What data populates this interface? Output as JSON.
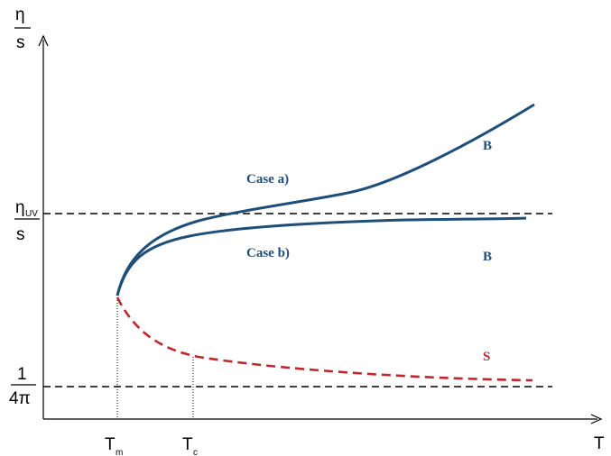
{
  "chart_data": {
    "type": "line",
    "title": "",
    "xlabel": "T",
    "ylabel": {
      "numerator": "η",
      "denominator": "s"
    },
    "xticks": [
      {
        "name": "T-m",
        "main": "T",
        "sub": "m"
      },
      {
        "name": "T-c",
        "main": "T",
        "sub": "c"
      }
    ],
    "yticks": [
      {
        "name": "eta-uv-over-s",
        "main": "η",
        "sub": "UV",
        "denominator": "s"
      },
      {
        "name": "one-over-4pi",
        "main": "1",
        "denominator": "4π"
      }
    ],
    "reference_lines": [
      {
        "name": "eta-uv-line",
        "style": "dashed",
        "level": "eta_uv_over_s"
      },
      {
        "name": "kss-bound-line",
        "style": "dashed",
        "level": "one_over_4pi"
      }
    ],
    "series": [
      {
        "id": "case-a",
        "style": "solid",
        "color": "#1f4e79",
        "shape": "rises from Tm, crosses eta_uv/s, keeps increasing"
      },
      {
        "id": "case-b",
        "style": "solid",
        "color": "#1f4e79",
        "shape": "rises from Tm, saturates just below eta_uv/s"
      },
      {
        "id": "phase-s",
        "style": "dashed",
        "color": "#c0272d",
        "shape": "decreases from Tm toward 1/(4π)"
      }
    ],
    "annotations": [
      {
        "name": "case-a-label",
        "text": "Case a)",
        "color": "#1f4e79"
      },
      {
        "name": "case-b-label",
        "text": "Case b)",
        "color": "#1f4e79"
      },
      {
        "name": "b-label-upper",
        "text": "B",
        "color": "#1f4e79"
      },
      {
        "name": "b-label-lower",
        "text": "B",
        "color": "#1f4e79"
      },
      {
        "name": "s-label",
        "text": "S",
        "color": "#c0272d"
      }
    ],
    "grid": false,
    "legend": "none"
  }
}
